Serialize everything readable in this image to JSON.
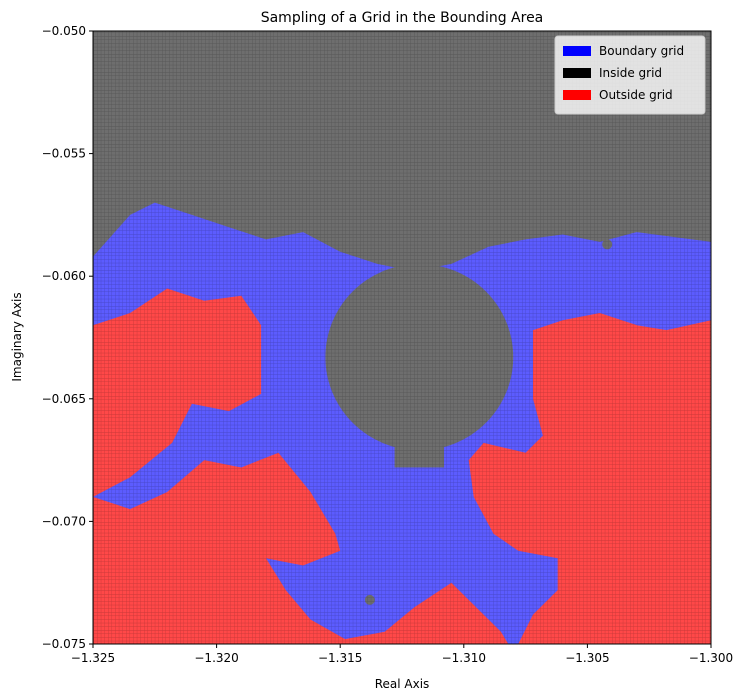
{
  "chart_data": {
    "type": "heatmap",
    "title": "Sampling of a Grid in the Bounding Area",
    "xlabel": "Real Axis",
    "ylabel": "Imaginary Axis",
    "xlim": [
      -1.325,
      -1.3
    ],
    "ylim": [
      -0.075,
      -0.05
    ],
    "x_ticks": [
      "−1.325",
      "−1.320",
      "−1.315",
      "−1.310",
      "−1.305",
      "−1.300"
    ],
    "y_ticks": [
      "−0.050",
      "−0.055",
      "−0.060",
      "−0.065",
      "−0.070",
      "−0.075"
    ],
    "grid_resolution": 0.00025,
    "legend": {
      "placement": "top-right",
      "entries": [
        {
          "label": "Boundary grid",
          "color": "#0000ff"
        },
        {
          "label": "Inside grid",
          "color": "#000000"
        },
        {
          "label": "Outside grid",
          "color": "#ff0000"
        }
      ]
    },
    "cell_colors": {
      "inside": "#6e6e6e",
      "boundary": "#5c5cff",
      "outside": "#ff4848"
    },
    "regions": {
      "inside_top_boundary_y": -0.0585,
      "inside_bulb": {
        "center": [
          -1.3118,
          -0.0633
        ],
        "radius_x": 0.0038,
        "radius_y": 0.0038
      },
      "inside_stalk": {
        "x": [
          -1.3128,
          -1.3108
        ],
        "y": [
          -0.0678,
          -0.065
        ]
      },
      "inside_dots": [
        [
          -1.3042,
          -0.0587
        ],
        [
          -1.3138,
          -0.0732
        ]
      ],
      "boundary_top_edge": [
        [
          -1.325,
          -0.0592
        ],
        [
          -1.3235,
          -0.0575
        ],
        [
          -1.3225,
          -0.057
        ],
        [
          -1.321,
          -0.0575
        ],
        [
          -1.3195,
          -0.058
        ],
        [
          -1.318,
          -0.0585
        ],
        [
          -1.3165,
          -0.0582
        ],
        [
          -1.315,
          -0.059
        ],
        [
          -1.3135,
          -0.0595
        ],
        [
          -1.312,
          -0.0598
        ],
        [
          -1.3105,
          -0.0595
        ],
        [
          -1.309,
          -0.0588
        ],
        [
          -1.3075,
          -0.0585
        ],
        [
          -1.306,
          -0.0583
        ],
        [
          -1.3045,
          -0.0586
        ],
        [
          -1.303,
          -0.0582
        ],
        [
          -1.3015,
          -0.0584
        ],
        [
          -1.3,
          -0.0586
        ]
      ],
      "outside_left": [
        [
          -1.325,
          -0.062
        ],
        [
          -1.3235,
          -0.0615
        ],
        [
          -1.322,
          -0.0605
        ],
        [
          -1.3205,
          -0.061
        ],
        [
          -1.319,
          -0.0608
        ],
        [
          -1.3182,
          -0.062
        ],
        [
          -1.3182,
          -0.0648
        ],
        [
          -1.3195,
          -0.0655
        ],
        [
          -1.321,
          -0.0652
        ],
        [
          -1.3218,
          -0.0668
        ],
        [
          -1.3235,
          -0.0682
        ],
        [
          -1.325,
          -0.069
        ]
      ],
      "outside_bottom": [
        [
          -1.325,
          -0.069
        ],
        [
          -1.3235,
          -0.0695
        ],
        [
          -1.322,
          -0.0688
        ],
        [
          -1.3205,
          -0.0675
        ],
        [
          -1.319,
          -0.0678
        ],
        [
          -1.3175,
          -0.0672
        ],
        [
          -1.3162,
          -0.0688
        ],
        [
          -1.3152,
          -0.0705
        ],
        [
          -1.315,
          -0.0712
        ],
        [
          -1.3165,
          -0.0718
        ],
        [
          -1.318,
          -0.0715
        ],
        [
          -1.3172,
          -0.0728
        ],
        [
          -1.3162,
          -0.074
        ],
        [
          -1.3148,
          -0.0748
        ],
        [
          -1.3132,
          -0.0745
        ],
        [
          -1.312,
          -0.0735
        ],
        [
          -1.3105,
          -0.0725
        ],
        [
          -1.3092,
          -0.0738
        ],
        [
          -1.3085,
          -0.0745
        ],
        [
          -1.3082,
          -0.075
        ],
        [
          -1.325,
          -0.075
        ]
      ],
      "outside_right": [
        [
          -1.3,
          -0.0618
        ],
        [
          -1.3018,
          -0.0622
        ],
        [
          -1.303,
          -0.062
        ],
        [
          -1.3045,
          -0.0615
        ],
        [
          -1.306,
          -0.0618
        ],
        [
          -1.3072,
          -0.0622
        ],
        [
          -1.3072,
          -0.065
        ],
        [
          -1.3068,
          -0.0665
        ],
        [
          -1.3075,
          -0.0672
        ],
        [
          -1.3092,
          -0.0668
        ],
        [
          -1.3098,
          -0.0675
        ],
        [
          -1.3096,
          -0.069
        ],
        [
          -1.3088,
          -0.0705
        ],
        [
          -1.3078,
          -0.0712
        ],
        [
          -1.3062,
          -0.0715
        ],
        [
          -1.3062,
          -0.0728
        ],
        [
          -1.3072,
          -0.0738
        ],
        [
          -1.3078,
          -0.075
        ],
        [
          -1.3,
          -0.075
        ]
      ]
    }
  }
}
